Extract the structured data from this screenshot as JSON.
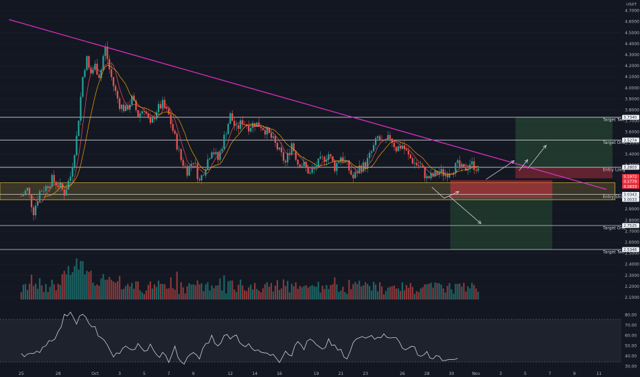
{
  "currency_label": "USDT",
  "chart_data": {
    "type": "candlestick",
    "price_axis": {
      "ticks": [
        "4.7000",
        "4.6000",
        "4.5000",
        "4.4000",
        "4.3000",
        "4.2000",
        "4.1000",
        "4.0000",
        "3.9000",
        "3.8000",
        "3.7000",
        "3.6000",
        "3.5000",
        "3.4000",
        "3.3000",
        "3.2000",
        "3.1000",
        "3.0000",
        "2.9000",
        "2.8000",
        "2.7000",
        "2.6000",
        "2.5000",
        "2.4000",
        "2.3000",
        "2.2000",
        "2.1000"
      ],
      "ylim": [
        2.05,
        4.76
      ]
    },
    "rsi_axis": {
      "ticks": [
        "80.00",
        "70.00",
        "60.00",
        "50.00",
        "40.00",
        "30.00"
      ],
      "ylim": [
        25,
        85
      ],
      "bands": [
        70,
        30
      ]
    },
    "x_axis": {
      "ticks": [
        {
          "label": "25",
          "day": 0
        },
        {
          "label": "28",
          "day": 3
        },
        {
          "label": "Oct",
          "day": 6
        },
        {
          "label": "3",
          "day": 8
        },
        {
          "label": "5",
          "day": 10
        },
        {
          "label": "7",
          "day": 12
        },
        {
          "label": "9",
          "day": 14
        },
        {
          "label": "12",
          "day": 17
        },
        {
          "label": "14",
          "day": 19
        },
        {
          "label": "16",
          "day": 21
        },
        {
          "label": "19",
          "day": 24
        },
        {
          "label": "21",
          "day": 26
        },
        {
          "label": "23",
          "day": 28
        },
        {
          "label": "26",
          "day": 31
        },
        {
          "label": "28",
          "day": 33
        },
        {
          "label": "30",
          "day": 35
        },
        {
          "label": "Nov",
          "day": 37
        },
        {
          "label": "3",
          "day": 39
        },
        {
          "label": "5",
          "day": 41
        },
        {
          "label": "7",
          "day": 43
        },
        {
          "label": "9",
          "day": 45
        },
        {
          "label": "11",
          "day": 47
        }
      ]
    },
    "levels": [
      {
        "name": "Target Two",
        "price": 3.734,
        "tag": "3.7340",
        "color": "#b2b5be"
      },
      {
        "name": "Target One",
        "price": 3.5274,
        "tag": "3.5274",
        "color": "#b2b5be"
      },
      {
        "name": "Entry Long",
        "price": 3.2803,
        "tag": "3.2803",
        "color": "#b2b5be"
      },
      {
        "name": "Entry Short",
        "price": 3.0343,
        "tag": "3.0343",
        "color": "#b2b5be"
      },
      {
        "name": "Target One",
        "price": 2.7525,
        "tag": "2.7525",
        "color": "#b2b5be"
      },
      {
        "name": "Target Two",
        "price": 2.5348,
        "tag": "2.5348",
        "color": "#b2b5be"
      }
    ],
    "price_tags": [
      {
        "text": "3.2803",
        "price": 3.2803,
        "bg": "#f0f3fa",
        "fg": "#131722"
      },
      {
        "text": "3.1972",
        "price": 3.1972,
        "bg": "#f23645",
        "fg": "#ffffff"
      },
      {
        "text": "3.1779",
        "price": 3.1779,
        "bg": "#f23645",
        "fg": "#ffffff"
      },
      {
        "text": "3.1633",
        "price": 3.1633,
        "bg": "#f23645",
        "fg": "#ffffff"
      },
      {
        "text": "3.0343",
        "price": 3.0343,
        "bg": "#f0f3fa",
        "fg": "#131722"
      },
      {
        "text": "3.0033",
        "price": 3.0033,
        "bg": "#f0f3fa",
        "fg": "#131722"
      }
    ],
    "support_zone": {
      "top": 3.14,
      "bottom": 2.985,
      "day_start": 0,
      "day_end": 48.3
    },
    "trendline": {
      "from": {
        "day": -1,
        "price": 4.62
      },
      "to": {
        "day": 47.6,
        "price": 3.08
      }
    },
    "long_position": {
      "day_start": 40.2,
      "day_end": 48.1,
      "entry": 3.2803,
      "stop": 3.18,
      "target": 3.734
    },
    "short_position": {
      "day_start": 34.9,
      "day_end": 43.2,
      "entry": 3.1633,
      "stop": 3.0,
      "target": 2.5348
    },
    "projection_arrows": [
      {
        "points": [
          [
            33.4,
            3.1
          ],
          [
            34.4,
            3.0
          ],
          [
            35.6,
            3.06
          ]
        ]
      },
      {
        "points": [
          [
            34.8,
            3.02
          ],
          [
            37.4,
            2.77
          ]
        ]
      },
      {
        "points": [
          [
            37.8,
            3.17
          ],
          [
            40.1,
            3.34
          ]
        ]
      },
      {
        "points": [
          [
            40.5,
            3.25
          ],
          [
            41.2,
            3.35
          ]
        ]
      },
      {
        "points": [
          [
            41.2,
            3.27
          ],
          [
            42.7,
            3.48
          ]
        ]
      }
    ],
    "candle_path": [
      [
        0,
        3.02
      ],
      [
        0.5,
        3.08
      ],
      [
        1,
        2.88
      ],
      [
        1.5,
        3.06
      ],
      [
        2,
        3.1
      ],
      [
        2.5,
        3.17
      ],
      [
        3,
        3.12
      ],
      [
        3.5,
        3.05
      ],
      [
        4,
        3.2
      ],
      [
        4.5,
        3.55
      ],
      [
        5,
        4.1
      ],
      [
        5.3,
        4.28
      ],
      [
        5.6,
        4.12
      ],
      [
        6,
        4.2
      ],
      [
        6.4,
        4.1
      ],
      [
        6.8,
        4.38
      ],
      [
        7.2,
        4.15
      ],
      [
        7.6,
        3.98
      ],
      [
        8,
        3.85
      ],
      [
        8.5,
        3.8
      ],
      [
        9,
        3.9
      ],
      [
        9.5,
        3.75
      ],
      [
        10,
        3.82
      ],
      [
        10.5,
        3.65
      ],
      [
        11,
        3.8
      ],
      [
        11.5,
        3.85
      ],
      [
        12,
        3.75
      ],
      [
        12.5,
        3.55
      ],
      [
        13,
        3.35
      ],
      [
        13.5,
        3.25
      ],
      [
        14,
        3.35
      ],
      [
        14.5,
        3.15
      ],
      [
        15,
        3.3
      ],
      [
        15.5,
        3.45
      ],
      [
        16,
        3.35
      ],
      [
        16.5,
        3.55
      ],
      [
        17,
        3.75
      ],
      [
        17.5,
        3.62
      ],
      [
        18,
        3.7
      ],
      [
        18.5,
        3.65
      ],
      [
        19,
        3.68
      ],
      [
        19.5,
        3.66
      ],
      [
        20,
        3.6
      ],
      [
        20.5,
        3.52
      ],
      [
        21,
        3.42
      ],
      [
        21.5,
        3.32
      ],
      [
        22,
        3.5
      ],
      [
        22.5,
        3.32
      ],
      [
        23,
        3.3
      ],
      [
        23.5,
        3.22
      ],
      [
        24,
        3.3
      ],
      [
        24.5,
        3.35
      ],
      [
        25,
        3.4
      ],
      [
        25.5,
        3.28
      ],
      [
        26,
        3.38
      ],
      [
        26.5,
        3.3
      ],
      [
        27,
        3.18
      ],
      [
        27.5,
        3.28
      ],
      [
        28,
        3.3
      ],
      [
        28.5,
        3.42
      ],
      [
        29,
        3.55
      ],
      [
        29.5,
        3.48
      ],
      [
        30,
        3.56
      ],
      [
        30.5,
        3.45
      ],
      [
        31,
        3.48
      ],
      [
        31.5,
        3.38
      ],
      [
        32,
        3.32
      ],
      [
        32.5,
        3.28
      ],
      [
        33,
        3.18
      ],
      [
        33.5,
        3.2
      ],
      [
        34,
        3.24
      ],
      [
        34.5,
        3.22
      ],
      [
        35,
        3.26
      ],
      [
        35.5,
        3.3
      ],
      [
        36,
        3.25
      ],
      [
        36.5,
        3.32
      ],
      [
        37,
        3.28
      ],
      [
        37.3,
        3.2
      ]
    ],
    "volume_max": 2.5,
    "rsi_path": [
      [
        0,
        43
      ],
      [
        1,
        40
      ],
      [
        2,
        52
      ],
      [
        3,
        62
      ],
      [
        3.5,
        78
      ],
      [
        4,
        84
      ],
      [
        4.5,
        74
      ],
      [
        5,
        82
      ],
      [
        5.5,
        70
      ],
      [
        6,
        66
      ],
      [
        6.5,
        58
      ],
      [
        7,
        48
      ],
      [
        7.5,
        42
      ],
      [
        8,
        40
      ],
      [
        8.5,
        52
      ],
      [
        9,
        46
      ],
      [
        9.5,
        50
      ],
      [
        10,
        44
      ],
      [
        10.5,
        50
      ],
      [
        11,
        40
      ],
      [
        11.5,
        42
      ],
      [
        12,
        36
      ],
      [
        12.5,
        48
      ],
      [
        13,
        32
      ],
      [
        13.5,
        36
      ],
      [
        14,
        44
      ],
      [
        14.5,
        38
      ],
      [
        15,
        52
      ],
      [
        15.5,
        58
      ],
      [
        16,
        50
      ],
      [
        16.5,
        62
      ],
      [
        17,
        56
      ],
      [
        17.5,
        60
      ],
      [
        18,
        52
      ],
      [
        18.5,
        50
      ],
      [
        19,
        48
      ],
      [
        19.5,
        46
      ],
      [
        20,
        40
      ],
      [
        20.5,
        44
      ],
      [
        21,
        36
      ],
      [
        21.5,
        46
      ],
      [
        22,
        42
      ],
      [
        22.5,
        54
      ],
      [
        23,
        48
      ],
      [
        23.5,
        56
      ],
      [
        24,
        50
      ],
      [
        24.5,
        44
      ],
      [
        25,
        56
      ],
      [
        25.5,
        48
      ],
      [
        26,
        44
      ],
      [
        26.5,
        36
      ],
      [
        27,
        52
      ],
      [
        27.5,
        58
      ],
      [
        28,
        60
      ],
      [
        28.5,
        62
      ],
      [
        29,
        56
      ],
      [
        29.5,
        64
      ],
      [
        30,
        56
      ],
      [
        30.5,
        58
      ],
      [
        31,
        50
      ],
      [
        31.5,
        46
      ],
      [
        32,
        48
      ],
      [
        32.5,
        40
      ],
      [
        33,
        44
      ],
      [
        33.5,
        36
      ],
      [
        34,
        40
      ],
      [
        34.5,
        36
      ],
      [
        35,
        34
      ],
      [
        35.5,
        38
      ]
    ]
  }
}
